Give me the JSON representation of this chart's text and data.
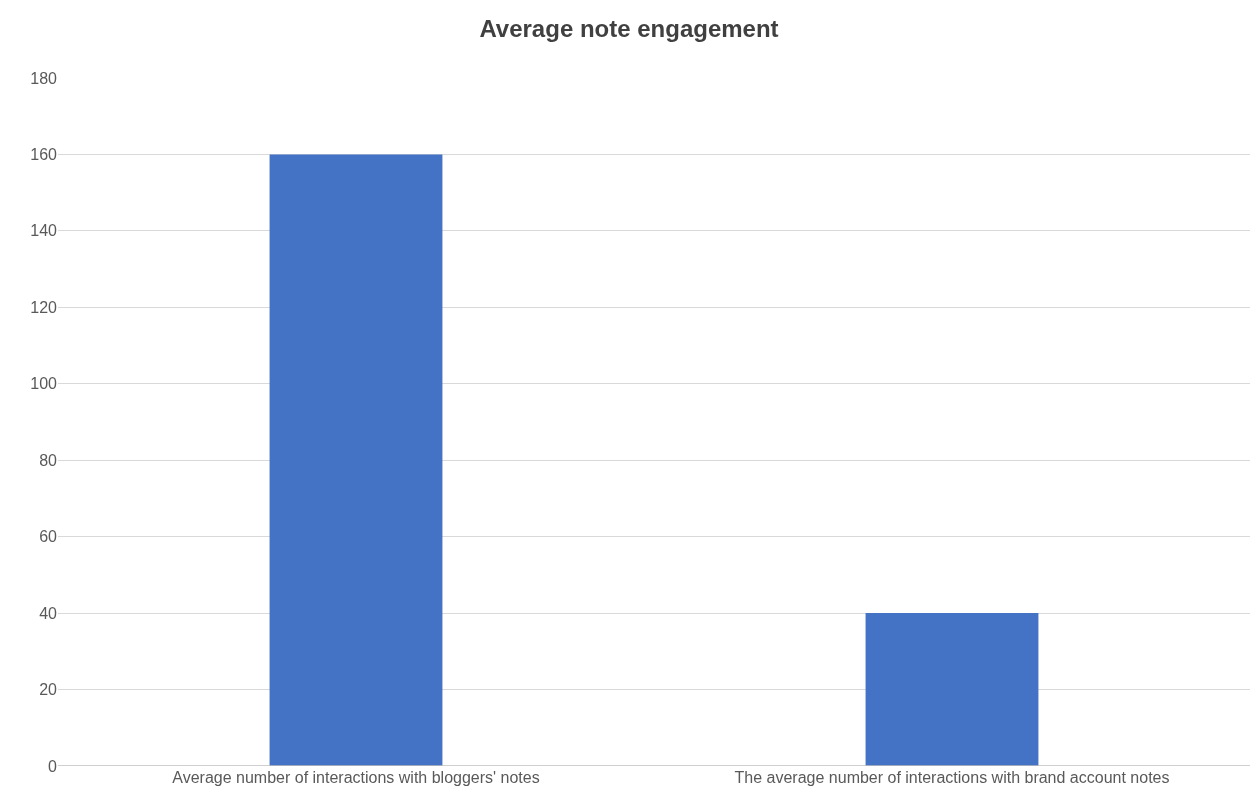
{
  "chart_data": {
    "type": "bar",
    "title": "Average note engagement",
    "categories": [
      "Average number of interactions with bloggers' notes",
      "The average number of interactions with brand account notes"
    ],
    "values": [
      160,
      40
    ],
    "color": "#4472c4",
    "ylim": [
      0,
      180
    ],
    "yticks": [
      0,
      20,
      40,
      60,
      80,
      100,
      120,
      140,
      160,
      180
    ],
    "grid": "y",
    "legend": false
  }
}
